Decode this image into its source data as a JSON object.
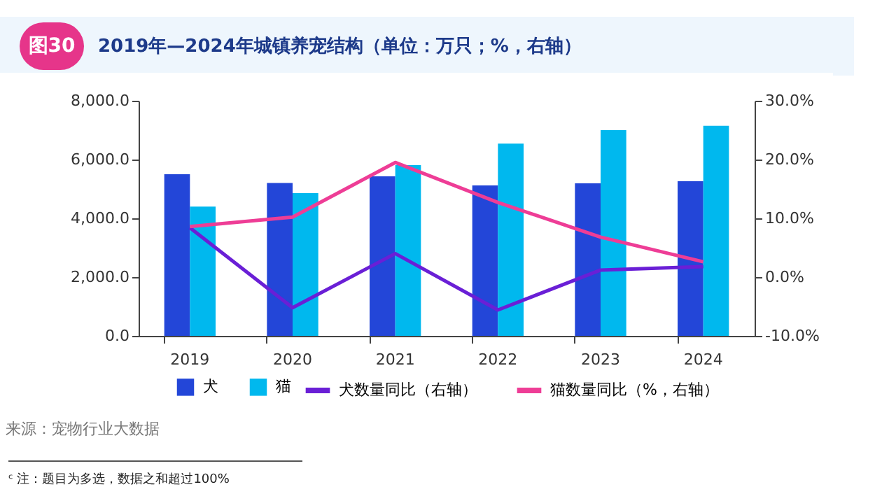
{
  "chart_data": {
    "type": "bar",
    "title": "2019年—2024年城镇养宠结构（单位：万只；%，右轴）",
    "annotations": [
      "图30",
      "来源：宠物行业大数据",
      "ᶜ 注：题目为多选，数据之和超过100%"
    ],
    "categories": [
      "2019",
      "2020",
      "2021",
      "2022",
      "2023",
      "2024"
    ],
    "series": [
      {
        "name": "犬",
        "color": "#2346d8",
        "values": [
          5500,
          5200,
          5430,
          5120,
          5190,
          5260
        ]
      },
      {
        "name": "猫",
        "color": "#00b8ee",
        "values": [
          4400,
          4860,
          5810,
          6540,
          7000,
          7150
        ]
      },
      {
        "name": "犬数量同比（右轴）",
        "type": "line",
        "axis": "y2",
        "color": "#6a1fd6",
        "values": [
          8.4,
          -5.2,
          4.0,
          -5.6,
          1.2,
          1.8
        ]
      },
      {
        "name": "猫数量同比（%，右轴）",
        "type": "line",
        "axis": "y2",
        "color": "#ee3d96",
        "values": [
          8.6,
          10.2,
          19.5,
          12.7,
          6.8,
          2.6
        ]
      }
    ],
    "ylim": [
      0,
      8000
    ],
    "yticks": [
      {
        "value": 0,
        "label": "0.0"
      },
      {
        "value": 2000,
        "label": "2,000.0"
      },
      {
        "value": 4000,
        "label": "4,000.0"
      },
      {
        "value": 6000,
        "label": "6,000.0"
      },
      {
        "value": 8000,
        "label": "8,000.0"
      }
    ],
    "y2lim": [
      -10,
      30
    ],
    "y2ticks": [
      {
        "value": -10,
        "label": "-10.0%"
      },
      {
        "value": 0,
        "label": "0.0%"
      },
      {
        "value": 10,
        "label": "10.0%"
      },
      {
        "value": 20,
        "label": "20.0%"
      },
      {
        "value": 30,
        "label": "30.0%"
      }
    ],
    "legend": "bottom"
  }
}
